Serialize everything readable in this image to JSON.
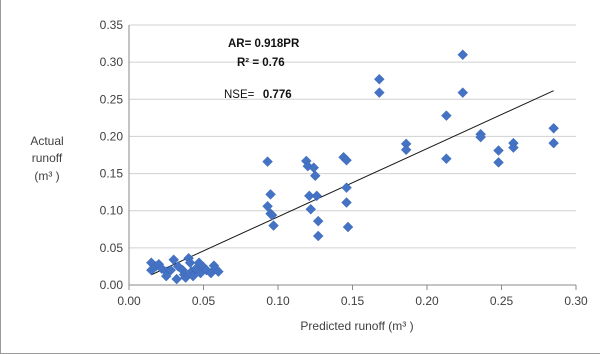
{
  "chart_data": {
    "type": "scatter",
    "xlabel": "Predicted runoff (m³ )",
    "ylabel": [
      "Actual",
      "runoff",
      "(m³ )"
    ],
    "xlim": [
      0,
      0.3
    ],
    "ylim": [
      0,
      0.35
    ],
    "x_ticks": [
      "0.00",
      "0.05",
      "0.10",
      "0.15",
      "0.20",
      "0.25",
      "0.30"
    ],
    "y_ticks": [
      "0.00",
      "0.05",
      "0.10",
      "0.15",
      "0.20",
      "0.25",
      "0.30",
      "0.35"
    ],
    "grid": "horizontal",
    "marker_color": "#4472C4",
    "trendline_color": "#1a1a1a",
    "annotations": {
      "equation": "AR= 0.918PR",
      "r2": "R² = 0.76",
      "nse_label": "NSE=",
      "nse_value": "0.776"
    },
    "series": [
      {
        "points": [
          {
            "x": 0.015,
            "y": 0.03
          },
          {
            "x": 0.015,
            "y": 0.02
          },
          {
            "x": 0.018,
            "y": 0.025
          },
          {
            "x": 0.02,
            "y": 0.028
          },
          {
            "x": 0.022,
            "y": 0.022
          },
          {
            "x": 0.025,
            "y": 0.018
          },
          {
            "x": 0.025,
            "y": 0.012
          },
          {
            "x": 0.028,
            "y": 0.02
          },
          {
            "x": 0.03,
            "y": 0.034
          },
          {
            "x": 0.032,
            "y": 0.008
          },
          {
            "x": 0.033,
            "y": 0.025
          },
          {
            "x": 0.036,
            "y": 0.02
          },
          {
            "x": 0.037,
            "y": 0.014
          },
          {
            "x": 0.038,
            "y": 0.01
          },
          {
            "x": 0.04,
            "y": 0.036
          },
          {
            "x": 0.041,
            "y": 0.03
          },
          {
            "x": 0.042,
            "y": 0.018
          },
          {
            "x": 0.043,
            "y": 0.012
          },
          {
            "x": 0.045,
            "y": 0.022
          },
          {
            "x": 0.047,
            "y": 0.03
          },
          {
            "x": 0.048,
            "y": 0.016
          },
          {
            "x": 0.05,
            "y": 0.024
          },
          {
            "x": 0.052,
            "y": 0.02
          },
          {
            "x": 0.055,
            "y": 0.016
          },
          {
            "x": 0.057,
            "y": 0.026
          },
          {
            "x": 0.058,
            "y": 0.022
          },
          {
            "x": 0.06,
            "y": 0.018
          },
          {
            "x": 0.093,
            "y": 0.166
          },
          {
            "x": 0.093,
            "y": 0.106
          },
          {
            "x": 0.095,
            "y": 0.122
          },
          {
            "x": 0.095,
            "y": 0.096
          },
          {
            "x": 0.096,
            "y": 0.094
          },
          {
            "x": 0.097,
            "y": 0.08
          },
          {
            "x": 0.119,
            "y": 0.167
          },
          {
            "x": 0.12,
            "y": 0.16
          },
          {
            "x": 0.121,
            "y": 0.12
          },
          {
            "x": 0.122,
            "y": 0.102
          },
          {
            "x": 0.124,
            "y": 0.158
          },
          {
            "x": 0.125,
            "y": 0.147
          },
          {
            "x": 0.126,
            "y": 0.12
          },
          {
            "x": 0.127,
            "y": 0.086
          },
          {
            "x": 0.127,
            "y": 0.066
          },
          {
            "x": 0.144,
            "y": 0.172
          },
          {
            "x": 0.146,
            "y": 0.168
          },
          {
            "x": 0.146,
            "y": 0.131
          },
          {
            "x": 0.146,
            "y": 0.111
          },
          {
            "x": 0.147,
            "y": 0.078
          },
          {
            "x": 0.168,
            "y": 0.277
          },
          {
            "x": 0.168,
            "y": 0.259
          },
          {
            "x": 0.186,
            "y": 0.19
          },
          {
            "x": 0.186,
            "y": 0.182
          },
          {
            "x": 0.213,
            "y": 0.228
          },
          {
            "x": 0.213,
            "y": 0.17
          },
          {
            "x": 0.224,
            "y": 0.31
          },
          {
            "x": 0.224,
            "y": 0.259
          },
          {
            "x": 0.236,
            "y": 0.203
          },
          {
            "x": 0.236,
            "y": 0.199
          },
          {
            "x": 0.248,
            "y": 0.181
          },
          {
            "x": 0.248,
            "y": 0.165
          },
          {
            "x": 0.258,
            "y": 0.191
          },
          {
            "x": 0.258,
            "y": 0.185
          },
          {
            "x": 0.285,
            "y": 0.211
          },
          {
            "x": 0.285,
            "y": 0.191
          }
        ]
      }
    ],
    "trendline": {
      "x": [
        0.015,
        0.285
      ],
      "y": [
        0.0138,
        0.2616
      ]
    }
  }
}
